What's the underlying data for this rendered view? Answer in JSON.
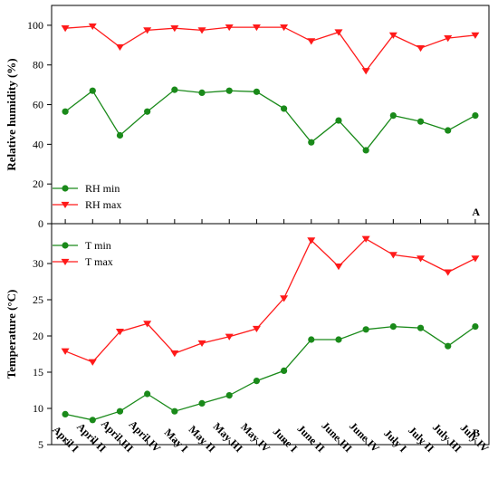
{
  "chart_data": [
    {
      "type": "line",
      "panel_label": "A",
      "ylabel": "Relative humidity (%)",
      "ylim": [
        0,
        110
      ],
      "yticks": [
        0,
        20,
        40,
        60,
        80,
        100
      ],
      "ytick_labels": [
        "0",
        "20",
        "40",
        "60",
        "80",
        "100"
      ],
      "categories": [
        "April I",
        "April II",
        "April III",
        "April IV",
        "May I",
        "May II",
        "May III",
        "May IV",
        "June I",
        "June II",
        "June III",
        "June IV",
        "July I",
        "July II",
        "July III",
        "July IV"
      ],
      "legend_position": "bottom-left",
      "grid": false,
      "series": [
        {
          "name": "RH min",
          "color": "#1a8a1a",
          "marker": "circle",
          "values": [
            56.5,
            67,
            44.5,
            56.5,
            67.5,
            66,
            67,
            66.5,
            58,
            41,
            52,
            37,
            54.5,
            51.5,
            47,
            54.5
          ]
        },
        {
          "name": "RH max",
          "color": "#ff1a1a",
          "marker": "triangle-down",
          "values": [
            98.5,
            99.5,
            89,
            97.5,
            98.5,
            97.5,
            99,
            99,
            99,
            92,
            96.5,
            77,
            95,
            88.5,
            93.5,
            95
          ]
        }
      ]
    },
    {
      "type": "line",
      "panel_label": "B",
      "ylabel": "Temperature (°C)",
      "ylim": [
        5,
        35.5
      ],
      "yticks": [
        5,
        10,
        15,
        20,
        25,
        30
      ],
      "ytick_labels": [
        "5",
        "10",
        "15",
        "20",
        "25",
        "30"
      ],
      "categories": [
        "April I",
        "April II",
        "April III",
        "April IV",
        "May I",
        "May II",
        "May III",
        "May IV",
        "June I",
        "June II",
        "June III",
        "June IV",
        "July I",
        "July II",
        "July III",
        "July IV"
      ],
      "xtick_labels": [
        "April I",
        "April II",
        "April III",
        "April IV",
        "May I",
        "May II",
        "May III",
        "May IV",
        "June I",
        "June II",
        "June III",
        "June IV",
        "July I",
        "July II",
        "July III",
        "July IV"
      ],
      "legend_position": "top-left",
      "grid": false,
      "series": [
        {
          "name": "T min",
          "color": "#1a8a1a",
          "marker": "circle",
          "values": [
            9.2,
            8.4,
            9.6,
            12,
            9.6,
            10.7,
            11.8,
            13.8,
            15.2,
            19.5,
            19.5,
            20.9,
            21.3,
            21.1,
            18.6,
            21.3
          ]
        },
        {
          "name": "T max",
          "color": "#ff1a1a",
          "marker": "triangle-down",
          "values": [
            17.9,
            16.4,
            20.6,
            21.7,
            17.6,
            19,
            19.9,
            21,
            25.2,
            33.2,
            29.6,
            33.4,
            31.2,
            30.7,
            28.8,
            30.7
          ]
        }
      ]
    }
  ]
}
